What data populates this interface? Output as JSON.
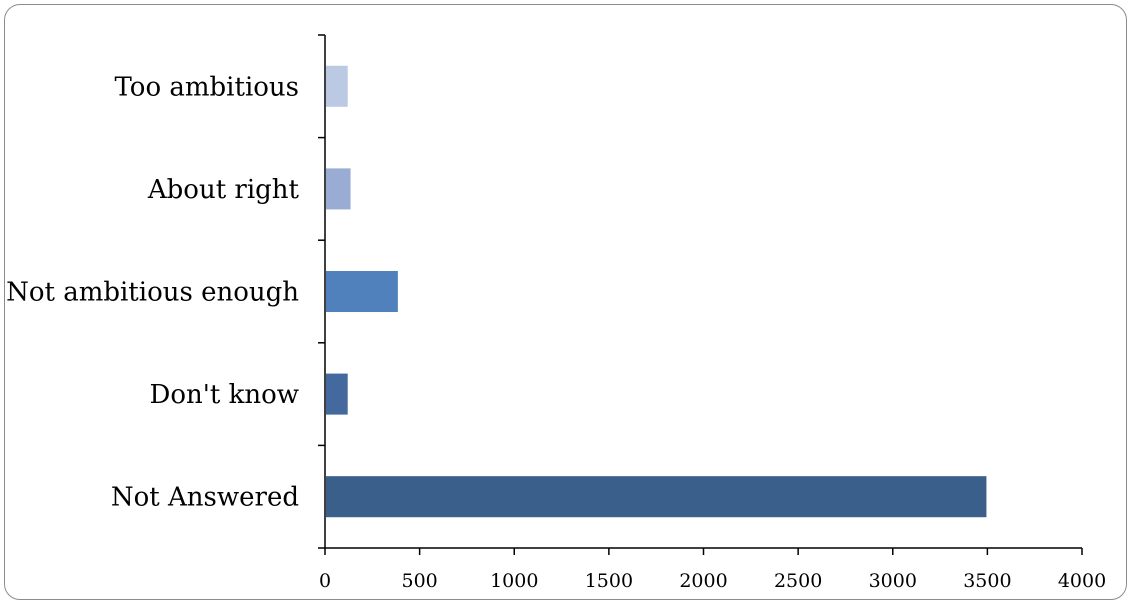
{
  "chart_data": {
    "type": "bar",
    "orientation": "horizontal",
    "title": "",
    "xlabel": "",
    "ylabel": "",
    "categories": [
      "Too ambitious",
      "About right",
      "Not ambitious enough",
      "Don't know",
      "Not Answered"
    ],
    "values": [
      120,
      135,
      385,
      120,
      3495
    ],
    "colors": [
      "#bcc9e3",
      "#9aacd3",
      "#5081bd",
      "#44699e",
      "#3a5f8a"
    ],
    "xlim": [
      0,
      4000
    ],
    "xticks": [
      0,
      500,
      1000,
      1500,
      2000,
      2500,
      3000,
      3500,
      4000
    ],
    "grid": false,
    "legend": "none"
  }
}
